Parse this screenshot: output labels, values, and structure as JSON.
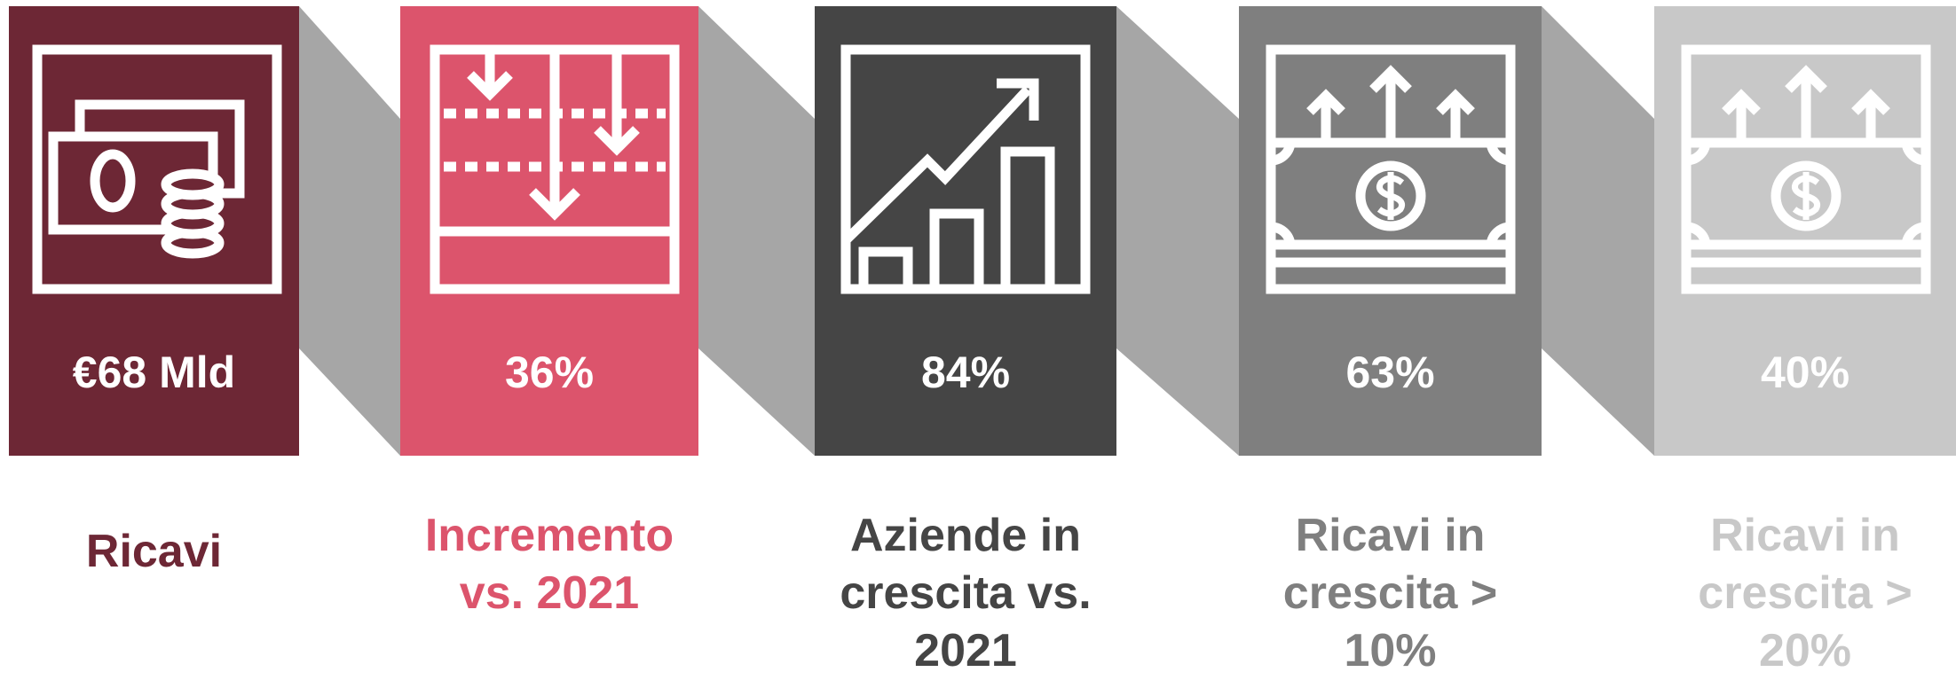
{
  "items": [
    {
      "value": "€68 Mld",
      "label": "Ricavi",
      "color": "#6d2735"
    },
    {
      "value": "36%",
      "label": "Incremento vs. 2021",
      "color": "#dc546c"
    },
    {
      "value": "84%",
      "label": "Aziende in crescita vs. 2021",
      "color": "#454545"
    },
    {
      "value": "63%",
      "label": "Ricavi in crescita > 10%",
      "color": "#7f7f7f"
    },
    {
      "value": "40%",
      "label": "Ricavi in crescita > 20%",
      "color": "#c8c8c8"
    }
  ]
}
